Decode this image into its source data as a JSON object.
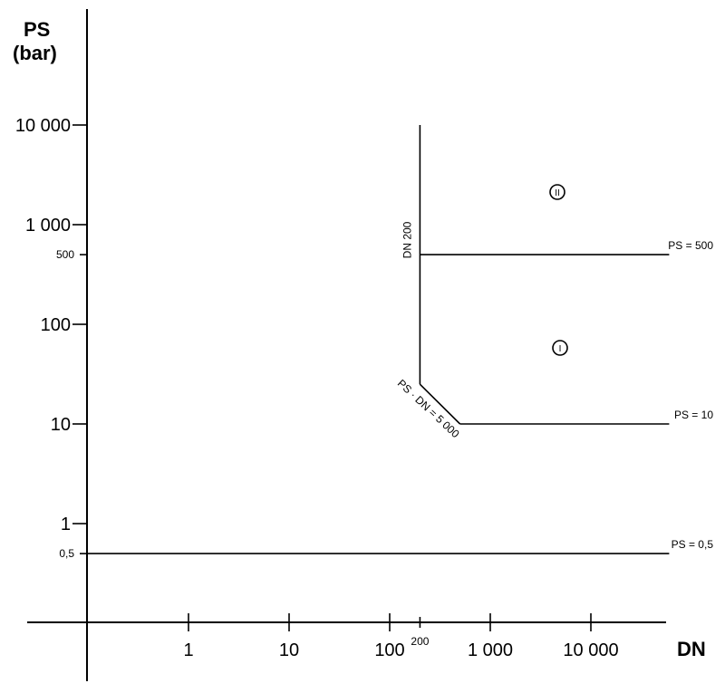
{
  "chart_data": {
    "type": "line",
    "x_scale": "log",
    "y_scale": "log",
    "xlabel": "DN",
    "ylabel_line1": "PS",
    "ylabel_line2": "(bar)",
    "x_ticks": [
      {
        "value": 1,
        "label": "1"
      },
      {
        "value": 10,
        "label": "10"
      },
      {
        "value": 100,
        "label": "100"
      },
      {
        "value": 1000,
        "label": "1 000"
      },
      {
        "value": 10000,
        "label": "10 000"
      }
    ],
    "x_minor_label": {
      "value": 200,
      "label": "200"
    },
    "y_ticks": [
      {
        "value": 1,
        "label": "1"
      },
      {
        "value": 10,
        "label": "10"
      },
      {
        "value": 100,
        "label": "100"
      },
      {
        "value": 1000,
        "label": "1 000"
      },
      {
        "value": 10000,
        "label": "10 000"
      }
    ],
    "y_minor_ticks": [
      {
        "value": 0.5,
        "label": "0,5"
      },
      {
        "value": 500,
        "label": "500"
      }
    ],
    "series": [
      {
        "points": [
          [
            0.1,
            0.5
          ],
          [
            60000,
            0.5
          ]
        ]
      },
      {
        "points": [
          [
            200,
            10000
          ],
          [
            200,
            25
          ]
        ]
      },
      {
        "points": [
          [
            200,
            25
          ],
          [
            500,
            10
          ]
        ]
      },
      {
        "points": [
          [
            500,
            10
          ],
          [
            60000,
            10
          ]
        ]
      },
      {
        "points": [
          [
            200,
            500
          ],
          [
            60000,
            500
          ]
        ]
      }
    ],
    "annotations": [
      {
        "id": "ps-05",
        "text": "PS = 0,5"
      },
      {
        "id": "ps-10",
        "text": "PS = 10"
      },
      {
        "id": "ps-500",
        "text": "PS = 500"
      },
      {
        "id": "dn-200",
        "text": "DN 200"
      },
      {
        "id": "ps-dn",
        "text": "PS · DN = 5 000"
      }
    ],
    "categories": [
      {
        "id": "cat-1",
        "label": "I"
      },
      {
        "id": "cat-2",
        "label": "II"
      }
    ]
  }
}
